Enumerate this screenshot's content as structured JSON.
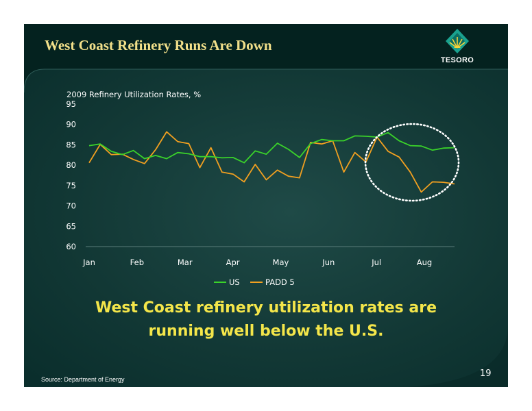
{
  "slide": {
    "title": "West Coast Refinery Runs Are Down",
    "logo_text": "TESORO",
    "caption_line1": "West Coast refinery utilization rates are",
    "caption_line2": "running well below the U.S.",
    "source": "Source: Department of Energy",
    "page_number": "19",
    "colors": {
      "background": "#062a28",
      "title": "#f2e08a",
      "caption": "#f4e64a",
      "us_line": "#3ad22a",
      "padd5_line": "#f2a020"
    }
  },
  "chart_data": {
    "type": "line",
    "ylabel": "2009 Refinery Utilization Rates, %",
    "xlabel": "",
    "ylim": [
      60,
      95
    ],
    "yticks": [
      60,
      65,
      70,
      75,
      80,
      85,
      90,
      95
    ],
    "xtick_labels": [
      "Jan",
      "Feb",
      "Mar",
      "Apr",
      "May",
      "Jun",
      "Jul",
      "Aug"
    ],
    "grid": false,
    "legend_position": "bottom",
    "annotation": "dotted circle around Jul–Aug",
    "series": [
      {
        "name": "US",
        "color": "#3ad22a",
        "values": [
          84.8,
          85.2,
          83.4,
          82.6,
          83.6,
          81.6,
          82.4,
          81.6,
          83.1,
          82.8,
          82.1,
          82.1,
          81.8,
          81.9,
          80.6,
          83.5,
          82.7,
          85.4,
          83.9,
          81.9,
          85.3,
          86.3,
          86.0,
          86.0,
          87.2,
          87.1,
          86.9,
          88.0,
          86.0,
          84.8,
          84.7,
          83.7,
          84.2,
          84.3
        ]
      },
      {
        "name": "PADD 5",
        "color": "#f2a020",
        "values": [
          80.6,
          85.1,
          82.6,
          82.7,
          81.4,
          80.4,
          83.8,
          88.2,
          85.8,
          85.3,
          79.4,
          84.3,
          78.3,
          77.8,
          75.9,
          80.2,
          76.4,
          78.8,
          77.3,
          76.9,
          85.6,
          85.2,
          86.0,
          78.3,
          83.1,
          80.8,
          86.9,
          83.4,
          82.0,
          78.3,
          73.4,
          75.9,
          75.8,
          75.4
        ]
      }
    ]
  }
}
